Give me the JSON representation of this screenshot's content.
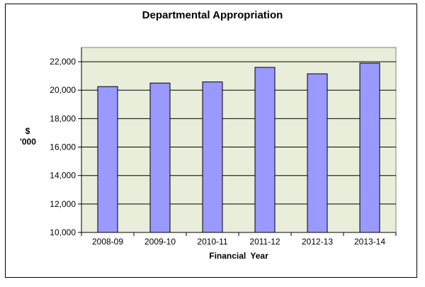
{
  "chart_data": {
    "type": "bar",
    "title": "Departmental Appropriation",
    "xlabel": "Financial  Year",
    "ylabel_line1": "$",
    "ylabel_line2": "'000",
    "categories": [
      "2008-09",
      "2009-10",
      "2010-11",
      "2011-12",
      "2012-13",
      "2013-14"
    ],
    "values": [
      20250,
      20500,
      20580,
      21600,
      21150,
      21900
    ],
    "ylim": [
      10000,
      23000
    ],
    "yticks": [
      10000,
      12000,
      14000,
      16000,
      18000,
      20000,
      22000
    ],
    "ytick_labels": [
      "10,000",
      "12,000",
      "14,000",
      "16,000",
      "18,000",
      "20,000",
      "22,000"
    ],
    "grid": true,
    "colors": {
      "bar_fill": "#9999ff",
      "bar_stroke": "#000000",
      "plot_bg": "#e8eed9",
      "gridline": "#000000"
    }
  }
}
